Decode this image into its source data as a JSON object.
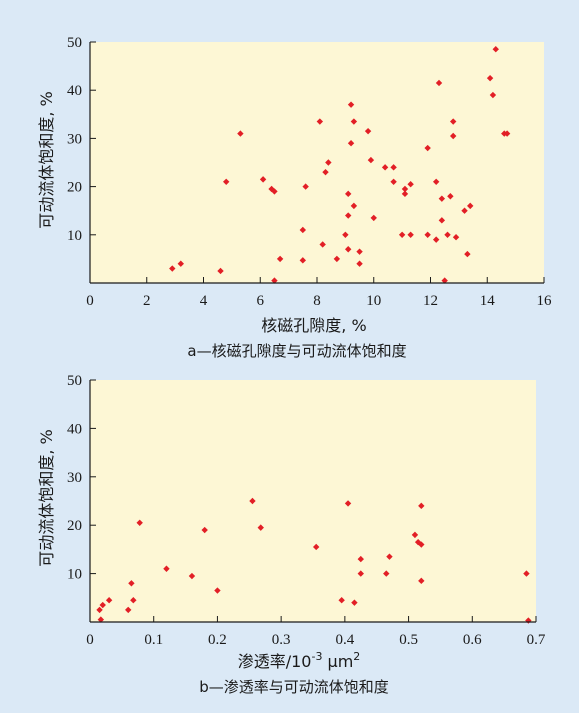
{
  "figure": {
    "background_color": "#dbe9f6",
    "plot_area_color": "#fdf7d5",
    "marker_color": "#e21f26"
  },
  "chart_data": [
    {
      "type": "scatter",
      "caption": "a—核磁孔隙度与可动流体饱和度",
      "xlabel": "核磁孔隙度, %",
      "ylabel": "可动流体饱和度, %",
      "xlim": [
        0,
        16
      ],
      "ylim": [
        0,
        50
      ],
      "xticks": [
        "0",
        "2",
        "4",
        "6",
        "8",
        "10",
        "12",
        "14",
        "16"
      ],
      "yticks": [
        "10",
        "20",
        "30",
        "40",
        "50"
      ],
      "points": [
        [
          2.9,
          3
        ],
        [
          3.2,
          4
        ],
        [
          4.6,
          2.5
        ],
        [
          4.8,
          21
        ],
        [
          5.3,
          31
        ],
        [
          6.1,
          21.5
        ],
        [
          6.4,
          19.5
        ],
        [
          6.5,
          19
        ],
        [
          6.5,
          0.5
        ],
        [
          6.7,
          5
        ],
        [
          7.5,
          11
        ],
        [
          7.5,
          4.7
        ],
        [
          7.6,
          20
        ],
        [
          8.1,
          33.5
        ],
        [
          8.2,
          8
        ],
        [
          8.3,
          23
        ],
        [
          8.4,
          25
        ],
        [
          8.7,
          5
        ],
        [
          9.0,
          10
        ],
        [
          9.1,
          7
        ],
        [
          9.1,
          14
        ],
        [
          9.1,
          18.5
        ],
        [
          9.2,
          29
        ],
        [
          9.2,
          37
        ],
        [
          9.3,
          33.5
        ],
        [
          9.3,
          16
        ],
        [
          9.5,
          6.5
        ],
        [
          9.5,
          4
        ],
        [
          9.8,
          31.5
        ],
        [
          9.9,
          25.5
        ],
        [
          10.0,
          13.5
        ],
        [
          10.4,
          24
        ],
        [
          10.7,
          24
        ],
        [
          10.7,
          21
        ],
        [
          11.0,
          10
        ],
        [
          11.1,
          18.5
        ],
        [
          11.1,
          19.5
        ],
        [
          11.3,
          10
        ],
        [
          11.3,
          20.5
        ],
        [
          11.9,
          10
        ],
        [
          11.9,
          28
        ],
        [
          12.2,
          21
        ],
        [
          12.2,
          9
        ],
        [
          12.3,
          41.5
        ],
        [
          12.4,
          17.5
        ],
        [
          12.4,
          13
        ],
        [
          12.6,
          10
        ],
        [
          12.5,
          0.5
        ],
        [
          12.7,
          18
        ],
        [
          12.8,
          33.5
        ],
        [
          12.8,
          30.5
        ],
        [
          12.9,
          9.5
        ],
        [
          13.2,
          15
        ],
        [
          13.3,
          6
        ],
        [
          13.4,
          16
        ],
        [
          14.1,
          42.5
        ],
        [
          14.2,
          39
        ],
        [
          14.3,
          48.5
        ],
        [
          14.6,
          31
        ],
        [
          14.7,
          31
        ]
      ]
    },
    {
      "type": "scatter",
      "caption": "b—渗透率与可动流体饱和度",
      "xlabel": "渗透率/10",
      "xlabel_sup": "-3",
      "xlabel_unit": " μm",
      "xlabel_unit_sup": "2",
      "ylabel": "可动流体饱和度, %",
      "xlim": [
        0,
        0.7
      ],
      "ylim": [
        0,
        50
      ],
      "xticks": [
        "0",
        "0.1",
        "0.2",
        "0.3",
        "0.4",
        "0.5",
        "0.6",
        "0.7"
      ],
      "yticks": [
        "10",
        "20",
        "30",
        "40",
        "50"
      ],
      "points": [
        [
          0.015,
          2.5
        ],
        [
          0.017,
          0.5
        ],
        [
          0.02,
          3.5
        ],
        [
          0.03,
          4.5
        ],
        [
          0.06,
          2.5
        ],
        [
          0.065,
          8
        ],
        [
          0.068,
          4.5
        ],
        [
          0.078,
          20.5
        ],
        [
          0.12,
          11
        ],
        [
          0.16,
          9.5
        ],
        [
          0.18,
          19
        ],
        [
          0.2,
          6.5
        ],
        [
          0.255,
          25
        ],
        [
          0.268,
          19.5
        ],
        [
          0.355,
          15.5
        ],
        [
          0.395,
          4.5
        ],
        [
          0.405,
          24.5
        ],
        [
          0.415,
          4
        ],
        [
          0.425,
          13
        ],
        [
          0.425,
          10
        ],
        [
          0.465,
          10
        ],
        [
          0.47,
          13.5
        ],
        [
          0.51,
          18
        ],
        [
          0.515,
          16.5
        ],
        [
          0.52,
          24
        ],
        [
          0.52,
          16
        ],
        [
          0.52,
          8.5
        ],
        [
          0.685,
          10
        ],
        [
          0.688,
          0.3
        ]
      ]
    }
  ]
}
